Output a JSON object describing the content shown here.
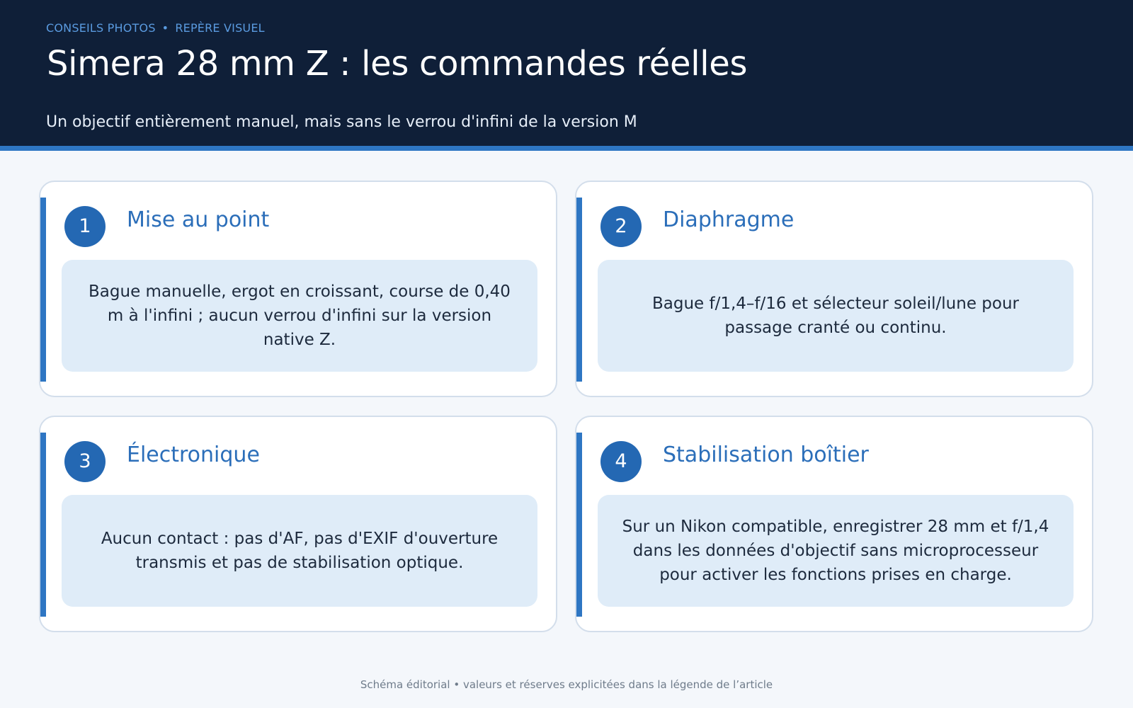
{
  "header": {
    "kicker_section": "CONSEILS PHOTOS",
    "kicker_separator": "•",
    "kicker_topic": "REPÈRE VISUEL",
    "title": "Simera 28 mm Z : les commandes réelles",
    "subtitle": "Un objectif entièrement manuel, mais sans le verrou d'infini de la version M"
  },
  "cards": [
    {
      "number": "1",
      "title": "Mise au point",
      "body": "Bague manuelle, ergot en croissant, course de 0,40 m à l'infini ; aucun verrou d'infini sur la version native Z."
    },
    {
      "number": "2",
      "title": "Diaphragme",
      "body": "Bague f/1,4–f/16 et sélecteur soleil/lune pour passage cranté ou continu."
    },
    {
      "number": "3",
      "title": "Électronique",
      "body": "Aucun contact : pas d'AF, pas d'EXIF d'ouverture transmis et pas de stabilisation optique."
    },
    {
      "number": "4",
      "title": "Stabilisation boîtier",
      "body": "Sur un Nikon compatible, enregistrer 28 mm et f/1,4 dans les données d'objectif sans microprocesseur pour activer les fonctions prises en charge."
    }
  ],
  "footer": "Schéma éditorial • valeurs et réserves explicitées dans la légende de l’article",
  "colors": {
    "header_background": "#0f1f38",
    "accent": "#2e76c3",
    "card_title": "#2b6eb9",
    "card_body_background": "#dfecf8",
    "page_background": "#f4f7fb"
  }
}
